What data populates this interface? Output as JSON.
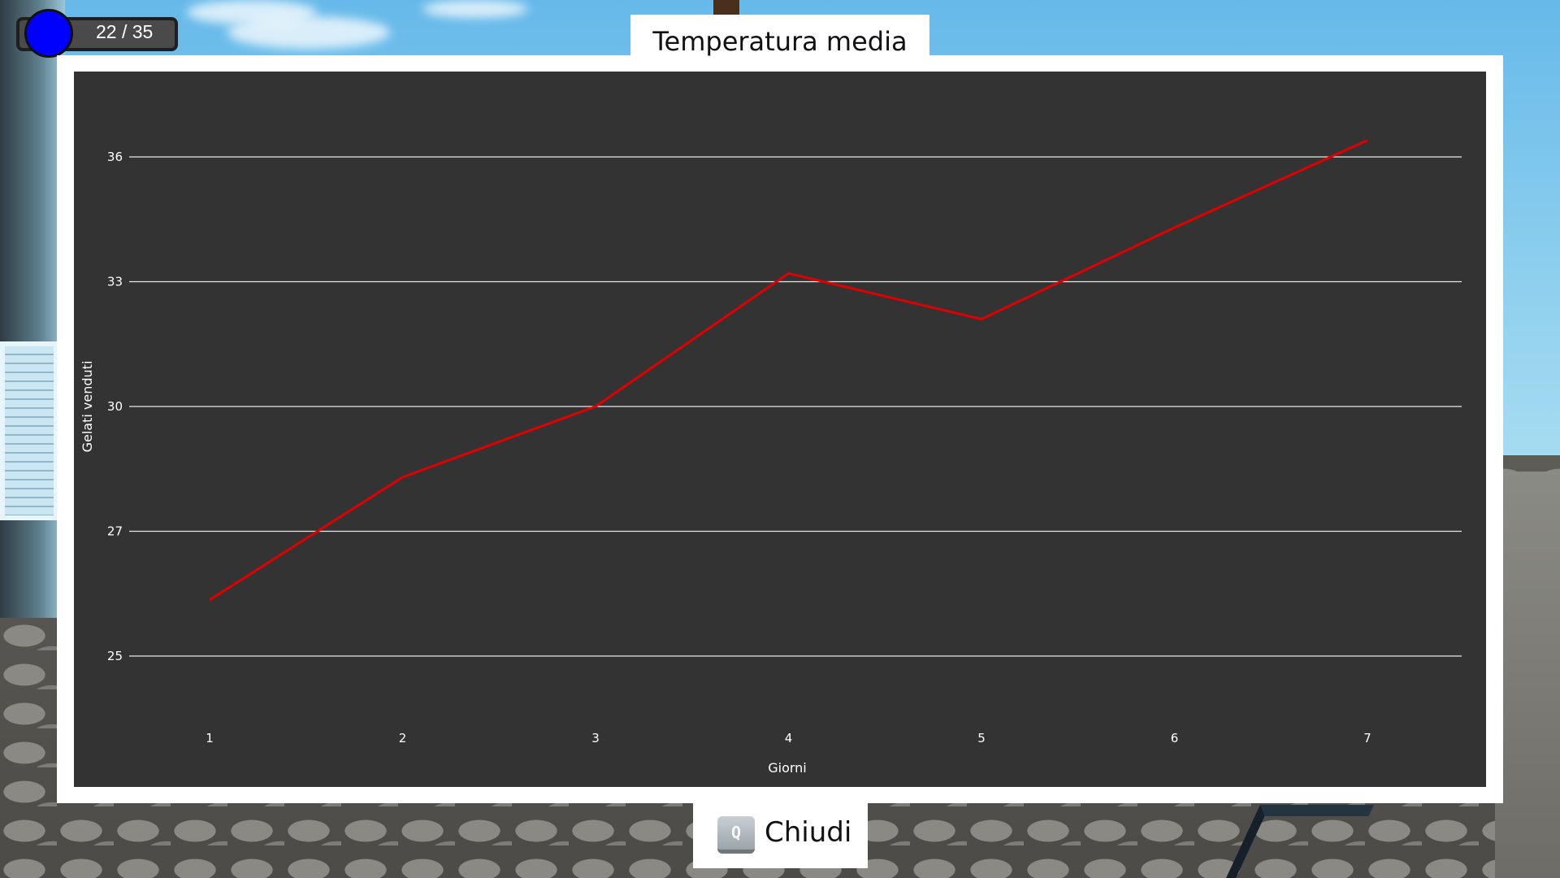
{
  "hud": {
    "counter": "22 / 35",
    "dot_color": "#0000ff"
  },
  "panel": {
    "title": "Temperatura media"
  },
  "close_button": {
    "key": "Q",
    "label": "Chiudi"
  },
  "chart_data": {
    "type": "line",
    "title": "Temperatura media",
    "xlabel": "Giorni",
    "ylabel": "Gelati venduti",
    "x": [
      1,
      2,
      3,
      4,
      5,
      6,
      7
    ],
    "series": [
      {
        "values": [
          25.9,
          28.3,
          30.0,
          33.2,
          32.1,
          34.3,
          36.4
        ],
        "color": "#e00000"
      }
    ],
    "y_ticks": [
      25,
      27,
      30,
      33,
      36
    ],
    "grid": true,
    "legend": "none",
    "background": "#333333"
  }
}
